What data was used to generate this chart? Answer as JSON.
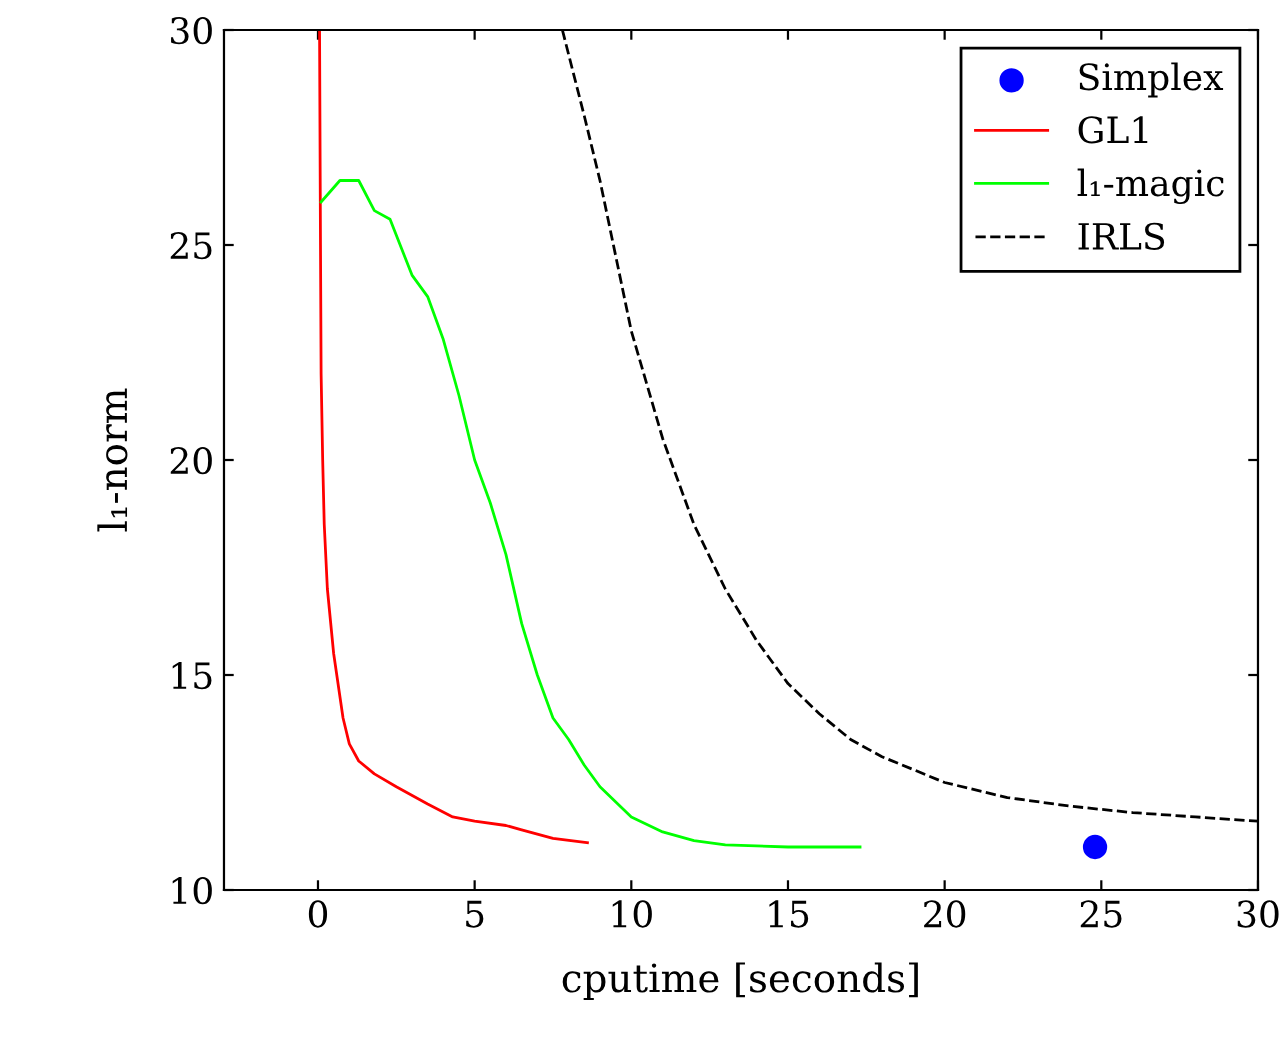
{
  "chart_data": {
    "type": "line",
    "xlabel": "cputime [seconds]",
    "ylabel": "l₁-norm",
    "xlim": [
      -3,
      30
    ],
    "ylim": [
      10,
      30
    ],
    "xticks": [
      0,
      5,
      10,
      15,
      20,
      25,
      30
    ],
    "yticks": [
      10,
      15,
      20,
      25,
      30
    ],
    "grid": false,
    "legend": "top right",
    "series": [
      {
        "name": "Simplex",
        "type": "scatter",
        "marker": "circle",
        "color": "#0000ff",
        "x": [
          24.8
        ],
        "values": [
          11
        ]
      },
      {
        "name": "GL1",
        "color": "#ff0000",
        "line_style": "solid",
        "x": [
          0.05,
          0.08,
          0.1,
          0.15,
          0.2,
          0.3,
          0.5,
          0.8,
          1.0,
          1.3,
          1.8,
          2.5,
          3.5,
          4.3,
          5,
          6,
          6.5,
          7.5,
          8.6
        ],
        "values": [
          30,
          25,
          22,
          20,
          18.5,
          17,
          15.5,
          14,
          13.4,
          13,
          12.7,
          12.4,
          12,
          11.7,
          11.6,
          11.5,
          11.4,
          11.2,
          11.1
        ]
      },
      {
        "name": "l₁-magic",
        "color": "#00ff00",
        "line_style": "solid",
        "x": [
          0.1,
          0.7,
          1.3,
          1.8,
          2.3,
          3,
          3.5,
          4,
          4.5,
          5,
          5.5,
          6,
          6.5,
          7,
          7.5,
          8,
          8.5,
          9,
          10,
          11,
          12,
          13,
          15,
          17.3
        ],
        "values": [
          26,
          26.5,
          26.5,
          25.8,
          25.6,
          24.3,
          23.8,
          22.8,
          21.5,
          20,
          19,
          17.8,
          16.2,
          15,
          14,
          13.5,
          12.9,
          12.4,
          11.7,
          11.35,
          11.15,
          11.05,
          11.0,
          11.0
        ]
      },
      {
        "name": "IRLS",
        "color": "#000000",
        "line_style": "dashed",
        "x": [
          7.8,
          8.5,
          9,
          10,
          11,
          12,
          13,
          14,
          15,
          16,
          17,
          18,
          19,
          20,
          22,
          24,
          26,
          28,
          30
        ],
        "values": [
          30,
          28,
          26.5,
          23,
          20.5,
          18.5,
          17,
          15.8,
          14.8,
          14.1,
          13.5,
          13.1,
          12.8,
          12.5,
          12.15,
          11.95,
          11.8,
          11.7,
          11.6
        ]
      }
    ]
  }
}
